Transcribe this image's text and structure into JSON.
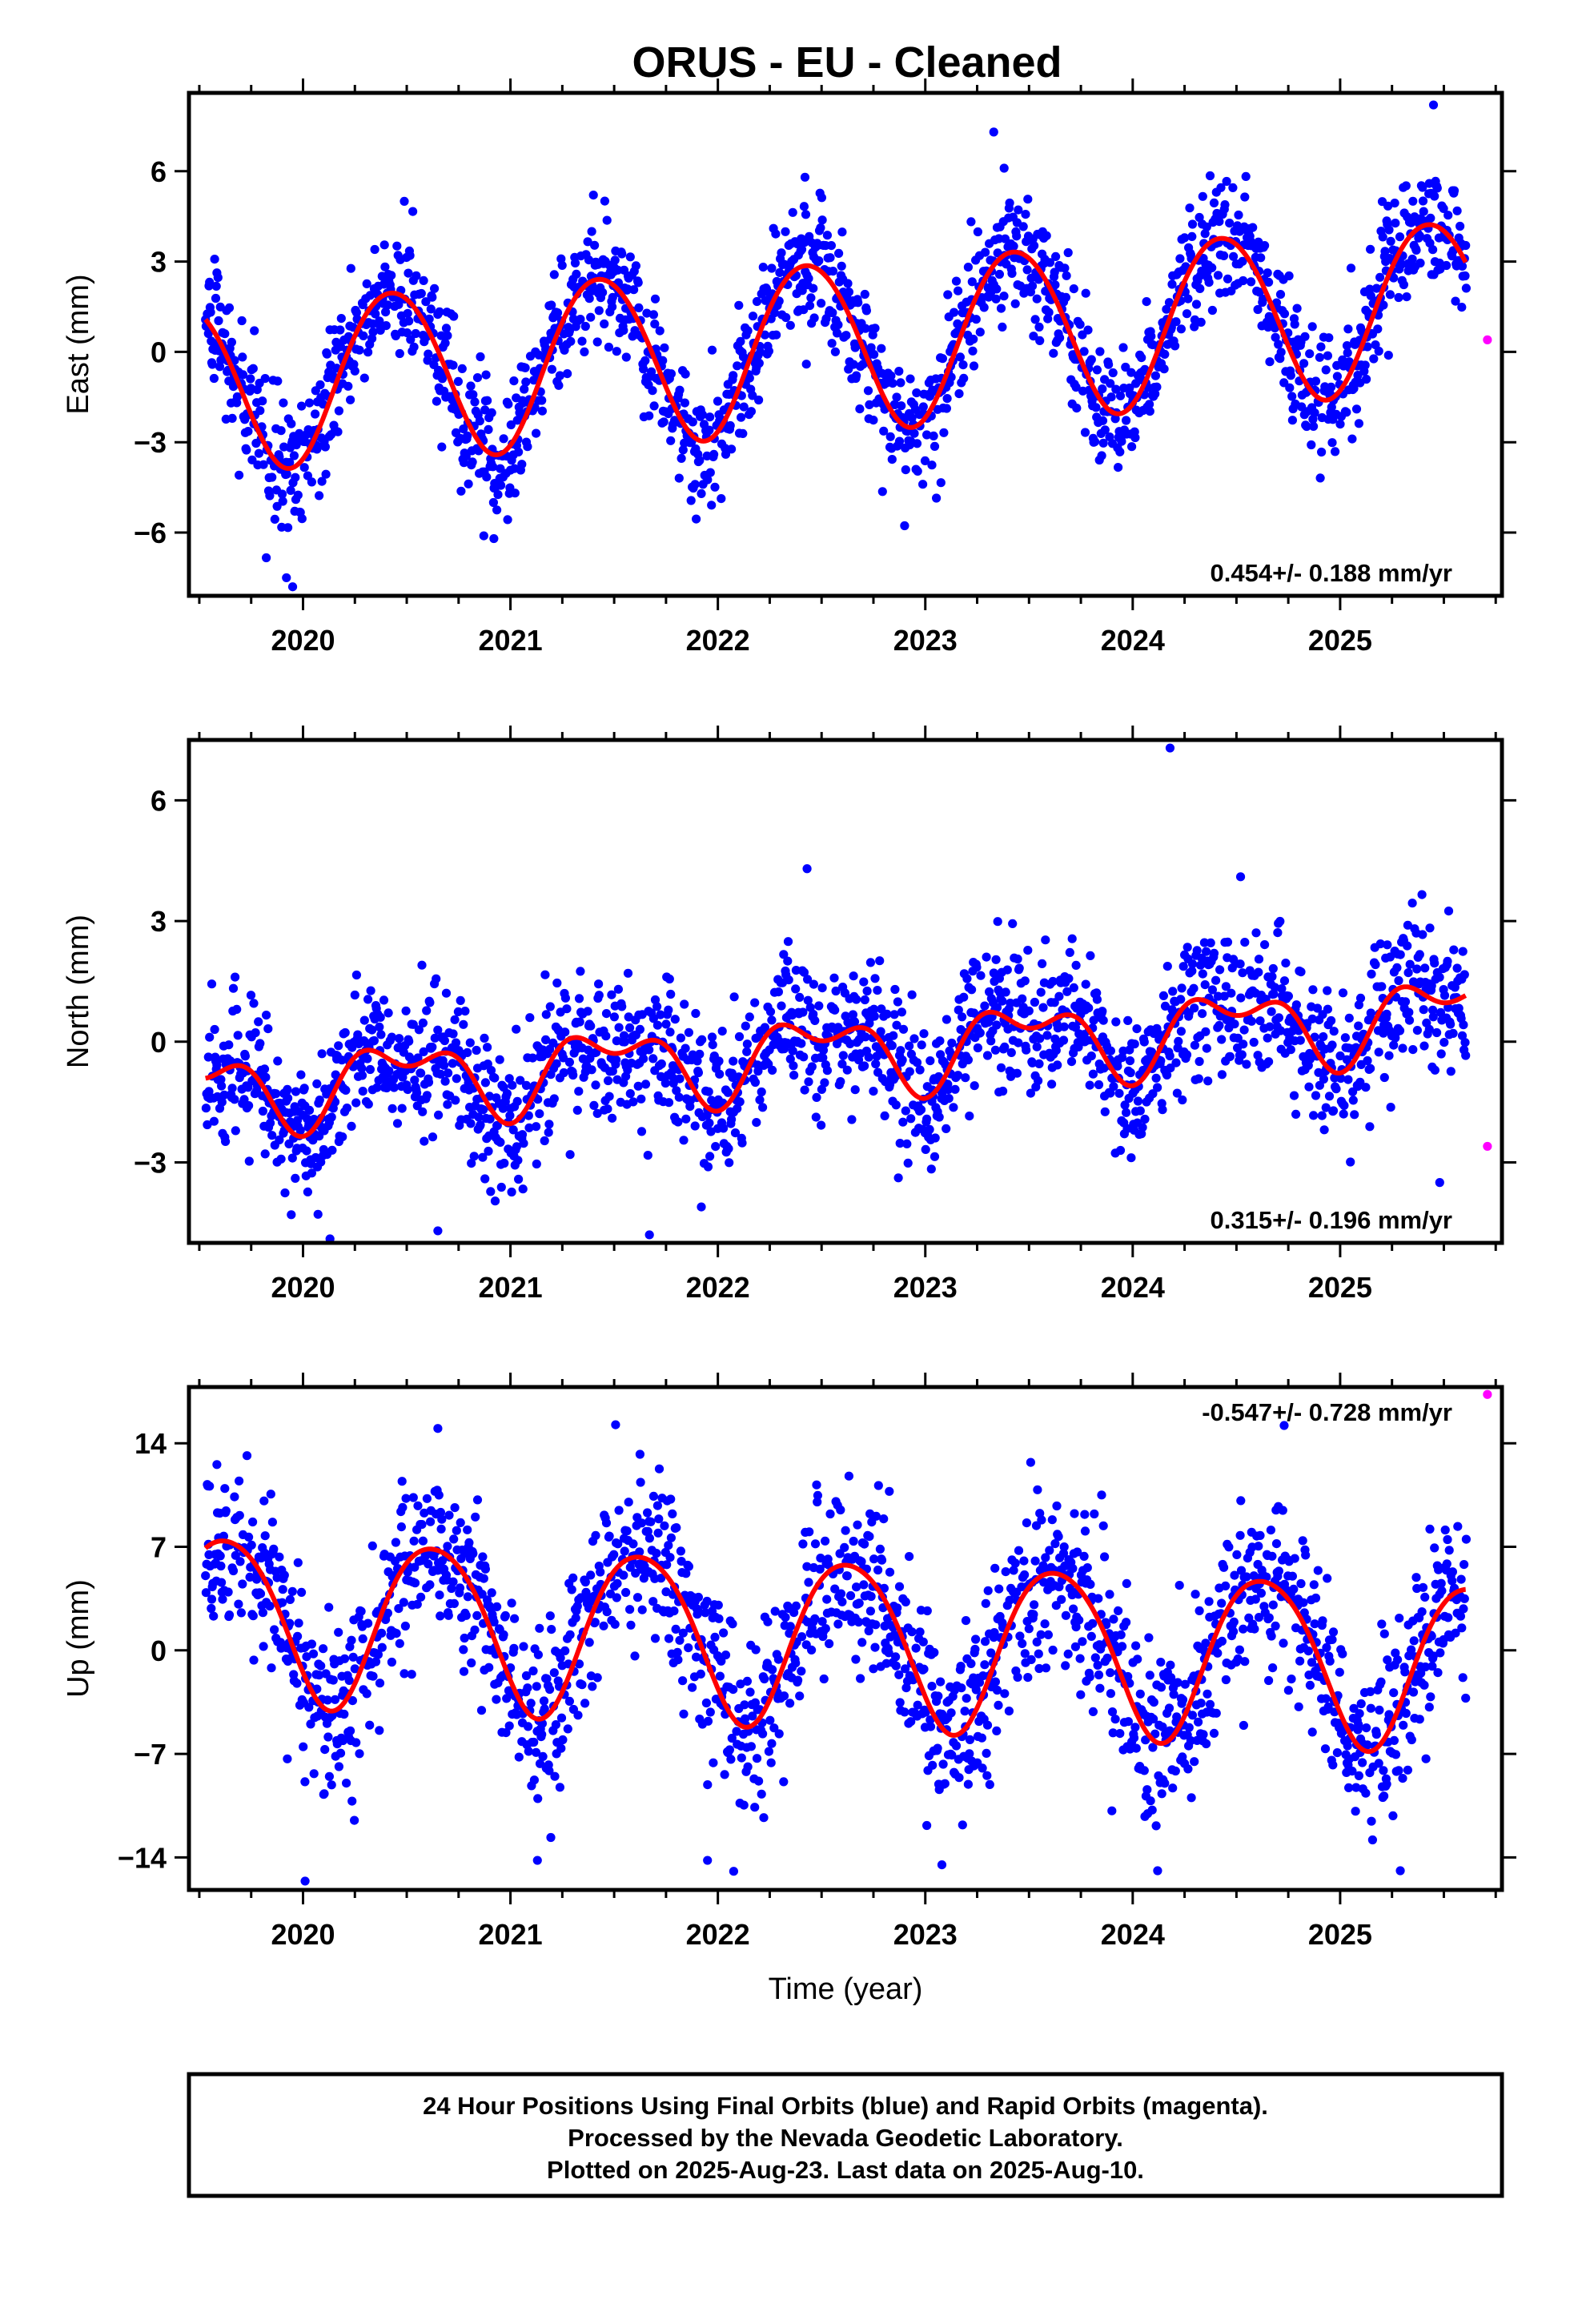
{
  "title": "ORUS  - EU - Cleaned",
  "colors": {
    "final_orbits": "#0000ff",
    "rapid_orbits": "#ff00ff",
    "model_fit": "#ff0000",
    "frame": "#000000"
  },
  "chart_data": [
    {
      "type": "scatter",
      "component": "east",
      "ylabel": "East (mm)",
      "xlabel": "",
      "xlim": [
        2019.45,
        2025.78
      ],
      "ylim": [
        -8.1,
        8.6
      ],
      "xticks": [
        2020,
        2021,
        2022,
        2023,
        2024,
        2025
      ],
      "yticks": [
        -6,
        -3,
        0,
        3,
        6
      ],
      "rate_label": "0.454+/- 0.188 mm/yr",
      "model": {
        "intercept": -1.1,
        "rate": 0.454,
        "ref_year": 2019.55,
        "amp_annual": 2.8,
        "phase_annual": 2020.43,
        "amp_semi": 0.15,
        "phase_semi": 2020.2
      },
      "noise_sd": 1.05,
      "outliers": [
        [
          2025.45,
          8.2
        ],
        [
          2023.33,
          7.3
        ],
        [
          2019.95,
          -7.8
        ],
        [
          2019.92,
          -7.5
        ],
        [
          2020.92,
          -6.2
        ],
        [
          2023.38,
          6.1
        ],
        [
          2022.42,
          5.8
        ]
      ],
      "rapid": [
        [
          2025.71,
          0.4
        ]
      ],
      "series": [
        {
          "name": "Final Orbits",
          "color": "#0000ff"
        },
        {
          "name": "Rapid Orbits",
          "color": "#ff00ff"
        }
      ]
    },
    {
      "type": "scatter",
      "component": "north",
      "ylabel": "North (mm)",
      "xlabel": "",
      "xlim": [
        2019.45,
        2025.78
      ],
      "ylim": [
        -5.0,
        7.5
      ],
      "xticks": [
        2020,
        2021,
        2022,
        2023,
        2024,
        2025
      ],
      "yticks": [
        -3,
        0,
        3,
        6
      ],
      "rate_label": "0.315+/- 0.196 mm/yr",
      "model": {
        "intercept": -1.2,
        "rate": 0.315,
        "ref_year": 2019.55,
        "amp_annual": 0.8,
        "phase_annual": 2020.48,
        "amp_semi": 0.5,
        "phase_semi": 2020.25
      },
      "noise_sd": 0.9,
      "outliers": [
        [
          2024.18,
          7.3
        ],
        [
          2020.13,
          -4.9
        ],
        [
          2020.65,
          -4.7
        ],
        [
          2021.67,
          -4.8
        ],
        [
          2025.48,
          -3.5
        ],
        [
          2022.43,
          4.3
        ],
        [
          2024.52,
          4.1
        ]
      ],
      "rapid": [
        [
          2025.71,
          -2.6
        ]
      ],
      "series": [
        {
          "name": "Final Orbits",
          "color": "#0000ff"
        },
        {
          "name": "Rapid Orbits",
          "color": "#ff00ff"
        }
      ]
    },
    {
      "type": "scatter",
      "component": "up",
      "ylabel": "Up (mm)",
      "xlabel": "Time (year)",
      "xlim": [
        2019.45,
        2025.78
      ],
      "ylim": [
        -16.2,
        17.8
      ],
      "xticks": [
        2020,
        2021,
        2022,
        2023,
        2024,
        2025
      ],
      "yticks": [
        -14,
        -7,
        0,
        7,
        14
      ],
      "rate_label": "-0.547+/- 0.728 mm/yr",
      "model": {
        "intercept": 2.4,
        "rate": -0.547,
        "ref_year": 2019.55,
        "amp_annual": 5.6,
        "phase_annual": 2020.63,
        "amp_semi": 0.6,
        "phase_semi": 2020.4
      },
      "noise_sd": 3.0,
      "outliers": [
        [
          2020.01,
          -15.6
        ],
        [
          2024.73,
          15.2
        ],
        [
          2020.65,
          15.0
        ],
        [
          2025.29,
          -14.9
        ],
        [
          2024.12,
          -14.9
        ],
        [
          2021.13,
          -14.2
        ],
        [
          2021.95,
          -14.2
        ],
        [
          2023.08,
          -14.5
        ],
        [
          2023.85,
          10.5
        ]
      ],
      "rapid": [
        [
          2025.71,
          17.3
        ]
      ],
      "series": [
        {
          "name": "Final Orbits",
          "color": "#0000ff"
        },
        {
          "name": "Rapid Orbits",
          "color": "#ff00ff"
        }
      ]
    }
  ],
  "footer": {
    "line1": "24 Hour Positions Using Final Orbits (blue) and Rapid Orbits (magenta).",
    "line2": "Processed by the Nevada Geodetic Laboratory.",
    "line3": "Plotted on 2025-Aug-23. Last data on 2025-Aug-10."
  }
}
